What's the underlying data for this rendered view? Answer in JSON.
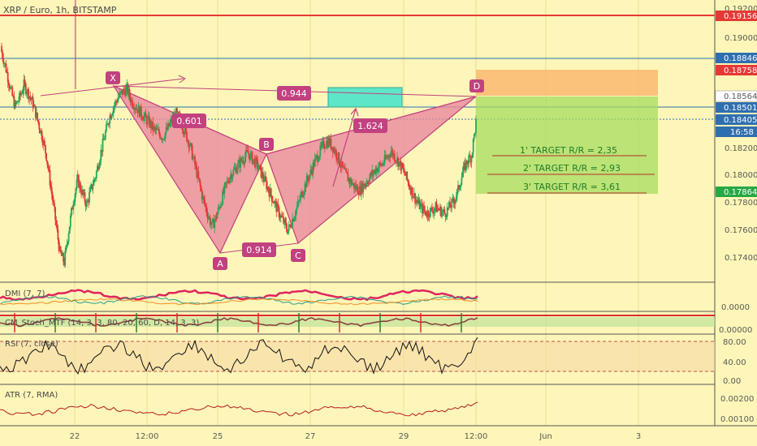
{
  "chart_data": {
    "type": "candlestick",
    "title": "XRP / Euro, 1h, BITSTAMP",
    "x_ticks": [
      "22",
      "12:00",
      "25",
      "27",
      "29",
      "12:00",
      "Jun",
      "3"
    ],
    "y_ticks": [
      "0.19200",
      "0.19000",
      "0.18200",
      "0.18000",
      "0.17800",
      "0.17600",
      "0.17400"
    ],
    "ylim": [
      0.1728,
      0.192
    ],
    "price_tags": [
      {
        "label": "0.19156",
        "value": 0.19156,
        "color": "#e53935"
      },
      {
        "label": "0.18846",
        "value": 0.18846,
        "color": "#2f6fb0"
      },
      {
        "label": "0.18758",
        "value": 0.18758,
        "color": "#e53935"
      },
      {
        "label": "0.18564",
        "value": 0.18564,
        "color": "#ffffff"
      },
      {
        "label": "0.18501",
        "value": 0.18501,
        "color": "#2f6fb0"
      },
      {
        "label": "0.18405",
        "value": 0.18405,
        "color": "#2f6fb0"
      },
      {
        "label": "16:58",
        "value": 0.183,
        "color": "#2f6fb0"
      },
      {
        "label": "0.17864",
        "value": 0.17864,
        "color": "#27a844"
      }
    ],
    "pattern": {
      "points": [
        {
          "label": "X",
          "x": 140,
          "value": 0.186
        },
        {
          "label": "A",
          "x": 271,
          "value": 0.1745
        },
        {
          "label": "B",
          "x": 328,
          "value": 0.1815
        },
        {
          "label": "C",
          "x": 367,
          "value": 0.175
        },
        {
          "label": "D",
          "x": 586,
          "value": 0.18564
        }
      ],
      "ratios": [
        {
          "label": "0.601",
          "x": 235,
          "value": 0.1838
        },
        {
          "label": "0.914",
          "x": 320,
          "value": 0.1742
        },
        {
          "label": "1.624",
          "x": 456,
          "value": 0.1835
        },
        {
          "label": "0.944",
          "x": 362,
          "value": 0.1859
        }
      ]
    },
    "targets": [
      "1' TARGET R/R = 2,35",
      "2' TARGET R/R = 2,93",
      "3' TARGET R/R = 3,61"
    ],
    "series_close": [
      0.1884,
      0.1872,
      0.1858,
      0.1846,
      0.1852,
      0.1861,
      0.1855,
      0.1848,
      0.1837,
      0.1826,
      0.1812,
      0.179,
      0.1768,
      0.1745,
      0.1738,
      0.176,
      0.1781,
      0.1795,
      0.1786,
      0.1778,
      0.1789,
      0.1798,
      0.1812,
      0.1825,
      0.1838,
      0.1846,
      0.1852,
      0.1856,
      0.1858,
      0.185,
      0.1846,
      0.1842,
      0.1838,
      0.1835,
      0.183,
      0.1828,
      0.1825,
      0.183,
      0.1836,
      0.1841,
      0.1836,
      0.1828,
      0.182,
      0.1808,
      0.1795,
      0.1782,
      0.1772,
      0.1763,
      0.177,
      0.178,
      0.179,
      0.1798,
      0.1802,
      0.1806,
      0.181,
      0.1814,
      0.181,
      0.1806,
      0.18,
      0.1793,
      0.1786,
      0.1779,
      0.1772,
      0.1766,
      0.176,
      0.1768,
      0.1776,
      0.1785,
      0.1793,
      0.18,
      0.1808,
      0.1814,
      0.182,
      0.1822,
      0.1818,
      0.1812,
      0.1804,
      0.1798,
      0.1794,
      0.179,
      0.1788,
      0.1792,
      0.1796,
      0.18,
      0.1804,
      0.1806,
      0.181,
      0.1815,
      0.1811,
      0.1806,
      0.18,
      0.1792,
      0.1785,
      0.1779,
      0.1775,
      0.1772,
      0.1774,
      0.1776,
      0.1774,
      0.1772,
      0.1776,
      0.178,
      0.1788,
      0.18,
      0.1808,
      0.1812,
      0.1835
    ]
  },
  "indicators": [
    {
      "name": "DMI (7, 7)",
      "ticks": [
        "0.0000"
      ]
    },
    {
      "name": "CM_Stoch_MTF (14, 3, 3, 80, 20, 60, D, 14, 3, 3)",
      "ticks": [
        "0.00000"
      ]
    },
    {
      "name": "RSI (7, close)",
      "ticks": [
        "80.00",
        "40.00",
        "0.00"
      ]
    },
    {
      "name": "ATR (7, RMA)",
      "ticks": [
        "0.00200",
        "0.00100"
      ]
    }
  ],
  "colors": {
    "background": "#fdf6b8",
    "up": "#26a65b",
    "down": "#e53935",
    "pattern_fill": "#e8899f",
    "pattern_edge": "#c2417f",
    "label_bg": "#c2417f"
  }
}
